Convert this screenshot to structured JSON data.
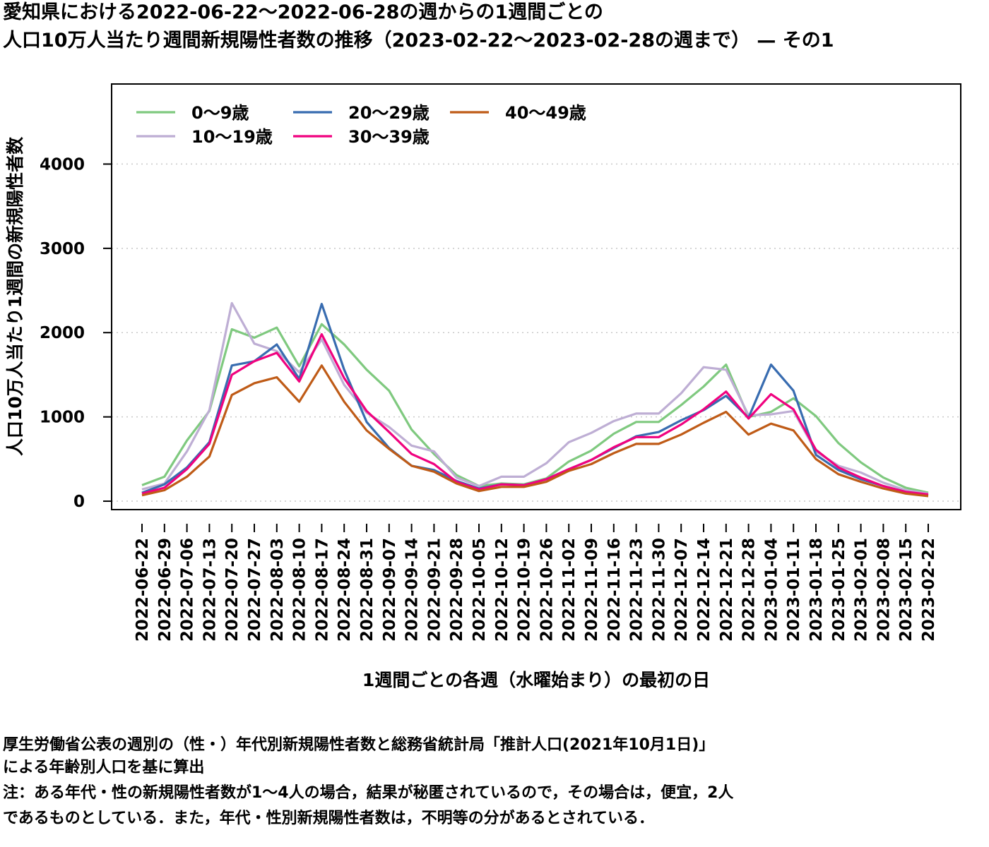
{
  "title_line1": "愛知県における2022-06-22〜2022-06-28の週からの1週間ごとの",
  "title_line2": "人口10万人当たり週間新規陽性者数の推移（2023-02-22〜2023-02-28の週まで） — その1",
  "notes": {
    "line1": "厚生労働省公表の週別の（性・）年代別新規陽性者数と総務省統計局「推計人口(2021年10月1日)」",
    "line2": "による年齢別人口を基に算出",
    "line3": "注：ある年代・性の新規陽性者数が1〜4人の場合，結果が秘匿されているので，その場合は，便宜，2人",
    "line4": "であるものとしている．また，年代・性別新規陽性者数は，不明等の分があるとされている．"
  },
  "chart_data": {
    "type": "line",
    "xlabel": "1週間ごとの各週（水曜始まり）の最初の日",
    "ylabel": "人口10万人当たり1週間の新規陽性者数",
    "ylim": [
      -100,
      4950
    ],
    "yticks": [
      0,
      1000,
      2000,
      3000,
      4000
    ],
    "grid": "horizontal dotted",
    "legend_position": "top-left",
    "x": [
      "2022-06-22",
      "2022-06-29",
      "2022-07-06",
      "2022-07-13",
      "2022-07-20",
      "2022-07-27",
      "2022-08-03",
      "2022-08-10",
      "2022-08-17",
      "2022-08-24",
      "2022-08-31",
      "2022-09-07",
      "2022-09-14",
      "2022-09-21",
      "2022-09-28",
      "2022-10-05",
      "2022-10-12",
      "2022-10-19",
      "2022-10-26",
      "2022-11-02",
      "2022-11-09",
      "2022-11-16",
      "2022-11-23",
      "2022-11-30",
      "2022-12-07",
      "2022-12-14",
      "2022-12-21",
      "2022-12-28",
      "2023-01-04",
      "2023-01-11",
      "2023-01-18",
      "2023-01-25",
      "2023-02-01",
      "2023-02-08",
      "2023-02-15",
      "2023-02-22"
    ],
    "series": [
      {
        "name": "0〜9歳",
        "color": "#7fc97f",
        "values": [
          190,
          290,
          720,
          1070,
          2040,
          1940,
          2060,
          1600,
          2100,
          1860,
          1560,
          1310,
          850,
          560,
          310,
          180,
          210,
          200,
          270,
          470,
          600,
          800,
          940,
          940,
          1140,
          1360,
          1620,
          1000,
          1060,
          1220,
          1010,
          690,
          460,
          280,
          160,
          100
        ]
      },
      {
        "name": "10〜19歳",
        "color": "#beaed4",
        "values": [
          140,
          210,
          590,
          1080,
          2350,
          1870,
          1780,
          1530,
          1920,
          1380,
          1050,
          880,
          660,
          590,
          280,
          180,
          290,
          290,
          450,
          700,
          810,
          950,
          1040,
          1040,
          1280,
          1590,
          1560,
          1020,
          1030,
          1070,
          590,
          420,
          340,
          220,
          130,
          90
        ]
      },
      {
        "name": "20〜29歳",
        "color": "#386cb0",
        "values": [
          100,
          200,
          400,
          700,
          1610,
          1660,
          1860,
          1450,
          2340,
          1560,
          940,
          630,
          420,
          370,
          240,
          150,
          200,
          190,
          260,
          380,
          490,
          630,
          770,
          820,
          960,
          1080,
          1250,
          990,
          1620,
          1310,
          550,
          370,
          260,
          180,
          110,
          70
        ]
      },
      {
        "name": "30〜39歳",
        "color": "#f0027f",
        "values": [
          90,
          160,
          380,
          680,
          1500,
          1660,
          1760,
          1420,
          1980,
          1460,
          1070,
          820,
          560,
          440,
          230,
          140,
          200,
          190,
          260,
          380,
          490,
          640,
          760,
          760,
          910,
          1090,
          1300,
          980,
          1270,
          1090,
          610,
          400,
          280,
          180,
          110,
          80
        ]
      },
      {
        "name": "40〜49歳",
        "color": "#bf5b17",
        "values": [
          70,
          130,
          290,
          530,
          1260,
          1400,
          1470,
          1180,
          1610,
          1180,
          840,
          620,
          420,
          350,
          210,
          120,
          170,
          170,
          230,
          360,
          440,
          570,
          680,
          680,
          790,
          930,
          1060,
          790,
          920,
          840,
          500,
          320,
          230,
          150,
          90,
          60
        ]
      }
    ]
  }
}
